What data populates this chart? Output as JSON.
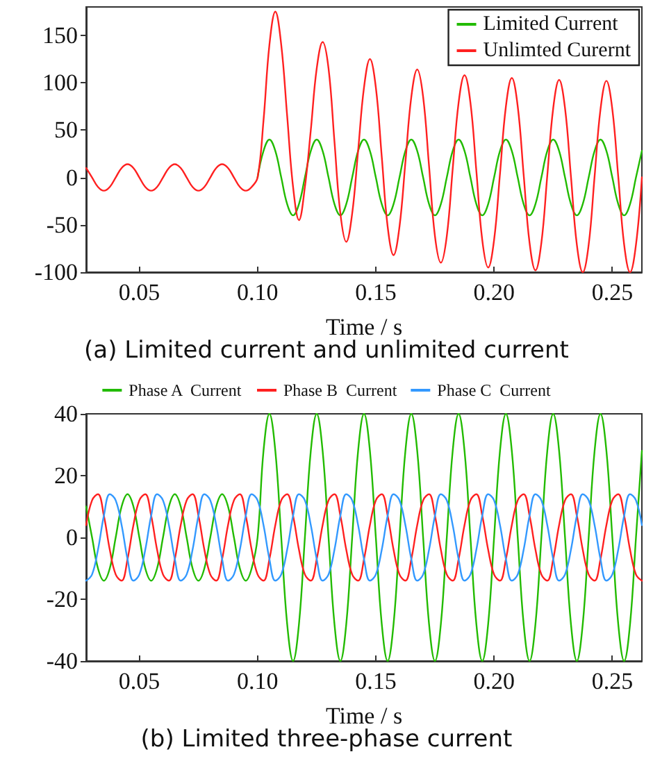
{
  "chart_data": [
    {
      "type": "line",
      "title": "(a) Limited current and unlimited current",
      "xlabel": "Time / s",
      "x": [
        0.0275,
        0.03,
        0.0325,
        0.035,
        0.0375,
        0.04,
        0.0425,
        0.045,
        0.0475,
        0.05,
        0.0525,
        0.055,
        0.0575,
        0.06,
        0.0625,
        0.065,
        0.0675,
        0.07,
        0.0725,
        0.075,
        0.0775,
        0.08,
        0.0825,
        0.085,
        0.0875,
        0.09,
        0.0925,
        0.095,
        0.0975,
        0.1,
        0.1025,
        0.105,
        0.1075,
        0.11,
        0.1125,
        0.115,
        0.1175,
        0.12,
        0.1225,
        0.125,
        0.1275,
        0.13,
        0.1325,
        0.135,
        0.1375,
        0.14,
        0.1425,
        0.145,
        0.1475,
        0.15,
        0.1525,
        0.155,
        0.1575,
        0.16,
        0.1625,
        0.165,
        0.1675,
        0.17,
        0.1725,
        0.175,
        0.1775,
        0.18,
        0.1825,
        0.185,
        0.1875,
        0.19,
        0.1925,
        0.195,
        0.1975,
        0.2,
        0.2025,
        0.205,
        0.2075,
        0.21,
        0.2125,
        0.215,
        0.2175,
        0.22,
        0.2225,
        0.225,
        0.2275,
        0.23,
        0.2325,
        0.235,
        0.2375,
        0.24,
        0.2425,
        0.245,
        0.2475,
        0.25,
        0.2525,
        0.255,
        0.2575,
        0.26,
        0.2625
      ],
      "series": [
        {
          "name": "Limited Current",
          "color": "#22bb00",
          "values": [
            null,
            null,
            null,
            null,
            null,
            null,
            null,
            null,
            null,
            null,
            null,
            null,
            null,
            null,
            null,
            null,
            null,
            null,
            null,
            null,
            null,
            null,
            null,
            null,
            null,
            null,
            null,
            null,
            null,
            0,
            28,
            40,
            28,
            0,
            -28,
            -40,
            -28,
            0,
            28,
            40,
            28,
            0,
            -28,
            -40,
            -28,
            0,
            28,
            40,
            28,
            0,
            -28,
            -40,
            -28,
            0,
            28,
            40,
            28,
            0,
            -28,
            -40,
            -28,
            0,
            28,
            40,
            28,
            0,
            -28,
            -40,
            -28,
            0,
            28,
            40,
            28,
            0,
            -28,
            -40,
            -28,
            0,
            28,
            40,
            28,
            0,
            -28,
            -40,
            -28,
            0,
            28,
            40,
            28,
            0,
            -28,
            -40,
            -28,
            0,
            28
          ]
        },
        {
          "name": "Unlimted Curernt",
          "color": "#ff2020",
          "values": [
            10,
            0,
            -10,
            -14,
            -10,
            0,
            10,
            14,
            10,
            0,
            -10,
            -14,
            -10,
            0,
            10,
            14,
            10,
            0,
            -10,
            -14,
            -10,
            0,
            10,
            14,
            10,
            0,
            -10,
            -14,
            -10,
            0,
            60,
            140,
            175,
            140,
            65,
            -10,
            -45,
            -10,
            50,
            115,
            143,
            115,
            38,
            -38,
            -68,
            -38,
            28,
            95,
            125,
            95,
            22,
            -52,
            -82,
            -52,
            16,
            85,
            114,
            85,
            12,
            -62,
            -90,
            -62,
            9,
            79,
            108,
            79,
            7,
            -66,
            -95,
            -66,
            4,
            75,
            105,
            75,
            3,
            -69,
            -98,
            -69,
            2,
            73,
            103,
            73,
            1,
            -71,
            -100,
            -71,
            1,
            72,
            102,
            72,
            1,
            -71,
            -100,
            -71,
            0
          ]
        }
      ],
      "xlim": [
        0.0275,
        0.2625
      ],
      "xticks": [
        {
          "value": 0.05,
          "label": "0.05"
        },
        {
          "value": 0.1,
          "label": "0.10"
        },
        {
          "value": 0.15,
          "label": "0.15"
        },
        {
          "value": 0.2,
          "label": "0.20"
        },
        {
          "value": 0.25,
          "label": "0.25"
        }
      ],
      "ylim": [
        -100,
        180
      ],
      "yticks": [
        -100,
        -50,
        0,
        50,
        100,
        150
      ],
      "legend": "top right",
      "marker": "none",
      "line_style": "solid"
    },
    {
      "type": "line",
      "title": "(b) Limited three-phase current",
      "xlabel": "Time / s",
      "x": [
        0.0275,
        0.03,
        0.0325,
        0.035,
        0.0375,
        0.04,
        0.0425,
        0.045,
        0.0475,
        0.05,
        0.0525,
        0.055,
        0.0575,
        0.06,
        0.0625,
        0.065,
        0.0675,
        0.07,
        0.0725,
        0.075,
        0.0775,
        0.08,
        0.0825,
        0.085,
        0.0875,
        0.09,
        0.0925,
        0.095,
        0.0975,
        0.1,
        0.1025,
        0.105,
        0.1075,
        0.11,
        0.1125,
        0.115,
        0.1175,
        0.12,
        0.1225,
        0.125,
        0.1275,
        0.13,
        0.1325,
        0.135,
        0.1375,
        0.14,
        0.1425,
        0.145,
        0.1475,
        0.15,
        0.1525,
        0.155,
        0.1575,
        0.16,
        0.1625,
        0.165,
        0.1675,
        0.17,
        0.1725,
        0.175,
        0.1775,
        0.18,
        0.1825,
        0.185,
        0.1875,
        0.19,
        0.1925,
        0.195,
        0.1975,
        0.2,
        0.2025,
        0.205,
        0.2075,
        0.21,
        0.2125,
        0.215,
        0.2175,
        0.22,
        0.2225,
        0.225,
        0.2275,
        0.23,
        0.2325,
        0.235,
        0.2375,
        0.24,
        0.2425,
        0.245,
        0.2475,
        0.25,
        0.2525,
        0.255,
        0.2575,
        0.26,
        0.2625
      ],
      "series": [
        {
          "name": "Phase A  Current",
          "color": "#22bb00",
          "values": [
            10,
            0,
            -10,
            -14,
            -10,
            0,
            10,
            14,
            10,
            0,
            -10,
            -14,
            -10,
            0,
            10,
            14,
            10,
            0,
            -10,
            -14,
            -10,
            0,
            10,
            14,
            10,
            0,
            -10,
            -14,
            -10,
            0,
            28,
            40,
            28,
            0,
            -28,
            -40,
            -28,
            0,
            28,
            40,
            28,
            0,
            -28,
            -40,
            -28,
            0,
            28,
            40,
            28,
            0,
            -28,
            -40,
            -28,
            0,
            28,
            40,
            28,
            0,
            -28,
            -40,
            -28,
            0,
            28,
            40,
            28,
            0,
            -28,
            -40,
            -28,
            0,
            28,
            40,
            28,
            0,
            -28,
            -40,
            -28,
            0,
            28,
            40,
            28,
            0,
            -28,
            -40,
            -28,
            0,
            28,
            40,
            28,
            0,
            -28,
            -40,
            -28,
            0,
            28
          ]
        },
        {
          "name": "Phase B  Current",
          "color": "#ff2020",
          "values": [
            4,
            12,
            14,
            7,
            -4,
            -12,
            -14,
            -7,
            4,
            12,
            14,
            7,
            -4,
            -12,
            -14,
            -7,
            4,
            12,
            14,
            7,
            -4,
            -12,
            -14,
            -7,
            4,
            12,
            14,
            7,
            -4,
            -12,
            -14,
            -7,
            4,
            12,
            14,
            7,
            -4,
            -12,
            -14,
            -7,
            4,
            12,
            14,
            7,
            -4,
            -12,
            -14,
            -7,
            4,
            12,
            14,
            7,
            -4,
            -12,
            -14,
            -7,
            4,
            12,
            14,
            7,
            -4,
            -12,
            -14,
            -7,
            4,
            12,
            14,
            7,
            -4,
            -12,
            -14,
            -7,
            4,
            12,
            14,
            7,
            -4,
            -12,
            -14,
            -7,
            4,
            12,
            14,
            7,
            -4,
            -12,
            -14,
            -7,
            4,
            12,
            14,
            7,
            -4,
            -12,
            -14
          ]
        },
        {
          "name": "Phase C  Current",
          "color": "#3399ff",
          "values": [
            -14,
            -12,
            -4,
            7,
            14,
            12,
            4,
            -7,
            -14,
            -12,
            -4,
            7,
            14,
            12,
            4,
            -7,
            -14,
            -12,
            -4,
            7,
            14,
            12,
            4,
            -7,
            -14,
            -12,
            -4,
            7,
            14,
            12,
            4,
            -7,
            -14,
            -12,
            -4,
            7,
            14,
            12,
            4,
            -7,
            -14,
            -12,
            -4,
            7,
            14,
            12,
            4,
            -7,
            -14,
            -12,
            -4,
            7,
            14,
            12,
            4,
            -7,
            -14,
            -12,
            -4,
            7,
            14,
            12,
            4,
            -7,
            -14,
            -12,
            -4,
            7,
            14,
            12,
            4,
            -7,
            -14,
            -12,
            -4,
            7,
            14,
            12,
            4,
            -7,
            -14,
            -12,
            -4,
            7,
            14,
            12,
            4,
            -7,
            -14,
            -12,
            -4,
            7,
            14,
            12,
            4
          ]
        }
      ],
      "xlim": [
        0.0275,
        0.2625
      ],
      "xticks": [
        {
          "value": 0.05,
          "label": "0.05"
        },
        {
          "value": 0.1,
          "label": "0.10"
        },
        {
          "value": 0.15,
          "label": "0.15"
        },
        {
          "value": 0.2,
          "label": "0.20"
        },
        {
          "value": 0.25,
          "label": "0.25"
        }
      ],
      "ylim": [
        -40,
        40
      ],
      "yticks": [
        -40,
        -20,
        0,
        20,
        40
      ],
      "legend": "top",
      "marker": "none",
      "line_style": "solid"
    }
  ]
}
